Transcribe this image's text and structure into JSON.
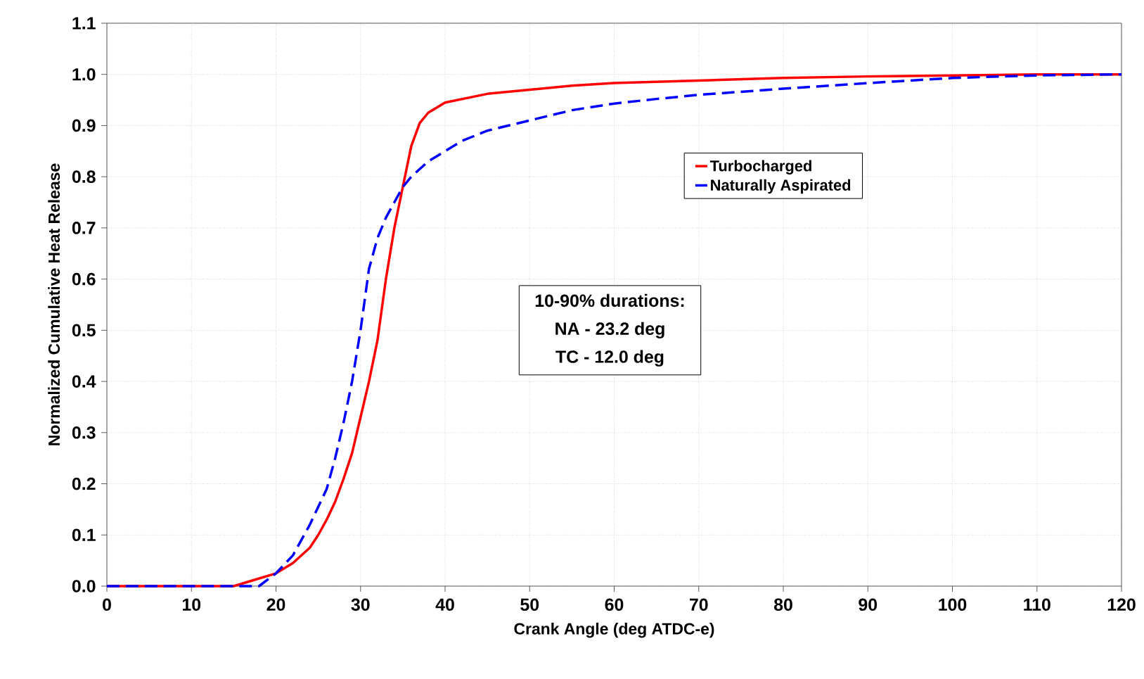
{
  "chart_data": {
    "type": "line",
    "xlabel": "Crank Angle (deg ATDC-e)",
    "ylabel": "Normalized Cumulative Heat Release",
    "series": [
      {
        "name": "Turbocharged",
        "color": "#ff0000",
        "line_style": "solid",
        "x": [
          0,
          10,
          15,
          17,
          20,
          22,
          24,
          25,
          26,
          27,
          28,
          29,
          30,
          31,
          32,
          33,
          34,
          35,
          36,
          37,
          38,
          40,
          45,
          50,
          55,
          60,
          70,
          80,
          90,
          100,
          110,
          120
        ],
        "values": [
          0,
          0,
          0,
          0.01,
          0.025,
          0.045,
          0.075,
          0.1,
          0.13,
          0.165,
          0.21,
          0.26,
          0.33,
          0.4,
          0.48,
          0.6,
          0.7,
          0.78,
          0.86,
          0.905,
          0.925,
          0.945,
          0.962,
          0.97,
          0.978,
          0.983,
          0.988,
          0.993,
          0.996,
          0.998,
          1.0,
          1.0
        ]
      },
      {
        "name": "Naturally Aspirated",
        "color": "#0000ff",
        "line_style": "dashed",
        "x": [
          0,
          10,
          18,
          20,
          22,
          24,
          26,
          27,
          28,
          29,
          30,
          31,
          32,
          33,
          34,
          35,
          36,
          38,
          40,
          42,
          45,
          50,
          55,
          60,
          65,
          70,
          80,
          90,
          100,
          110,
          120
        ],
        "values": [
          0,
          0,
          0,
          0.025,
          0.06,
          0.12,
          0.19,
          0.25,
          0.32,
          0.4,
          0.5,
          0.62,
          0.68,
          0.72,
          0.75,
          0.78,
          0.8,
          0.83,
          0.85,
          0.87,
          0.89,
          0.91,
          0.93,
          0.943,
          0.952,
          0.96,
          0.972,
          0.983,
          0.993,
          0.998,
          1.0
        ]
      }
    ],
    "annotations": [
      "10-90% durations:",
      "NA - 23.2 deg",
      "TC - 12.0 deg"
    ],
    "xlim": [
      0,
      120
    ],
    "ylim": [
      0,
      1.1
    ],
    "xticks": [
      0,
      10,
      20,
      30,
      40,
      50,
      60,
      70,
      80,
      90,
      100,
      110,
      120
    ],
    "yticks": [
      {
        "value": 0,
        "label": "0.0"
      },
      {
        "value": 0.1,
        "label": "0.1"
      },
      {
        "value": 0.2,
        "label": "0.2"
      },
      {
        "value": 0.3,
        "label": "0.3"
      },
      {
        "value": 0.4,
        "label": "0.4"
      },
      {
        "value": 0.5,
        "label": "0.5"
      },
      {
        "value": 0.6,
        "label": "0.6"
      },
      {
        "value": 0.7,
        "label": "0.7"
      },
      {
        "value": 0.8,
        "label": "0.8"
      },
      {
        "value": 0.9,
        "label": "0.9"
      },
      {
        "value": 1.0,
        "label": "1.0"
      },
      {
        "value": 1.1,
        "label": "1.1"
      }
    ],
    "grid": true,
    "legend": "top right",
    "marker": "none"
  }
}
